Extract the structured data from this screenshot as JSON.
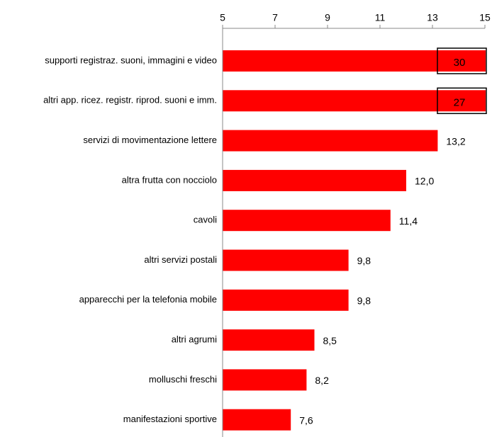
{
  "chart_data": {
    "type": "bar",
    "orientation": "horizontal",
    "categories": [
      "supporti registraz. suoni, immagini e video",
      "altri app. ricez. registr. riprod. suoni e imm.",
      "servizi di movimentazione lettere",
      "altra frutta con nocciolo",
      "cavoli",
      "altri servizi postali",
      "apparecchi per la telefonia mobile",
      "altri agrumi",
      "molluschi freschi",
      "manifestazioni sportive"
    ],
    "values": [
      30,
      27,
      13.2,
      12.0,
      11.4,
      9.8,
      9.8,
      8.5,
      8.2,
      7.6
    ],
    "value_labels": [
      "30",
      "27",
      "13,2",
      "12,0",
      "11,4",
      "9,8",
      "9,8",
      "8,5",
      "8,2",
      "7,6"
    ],
    "color": "#ff0000",
    "xlim": [
      5,
      15
    ],
    "xticks": [
      5,
      7,
      9,
      11,
      13,
      15
    ],
    "grid": false
  }
}
